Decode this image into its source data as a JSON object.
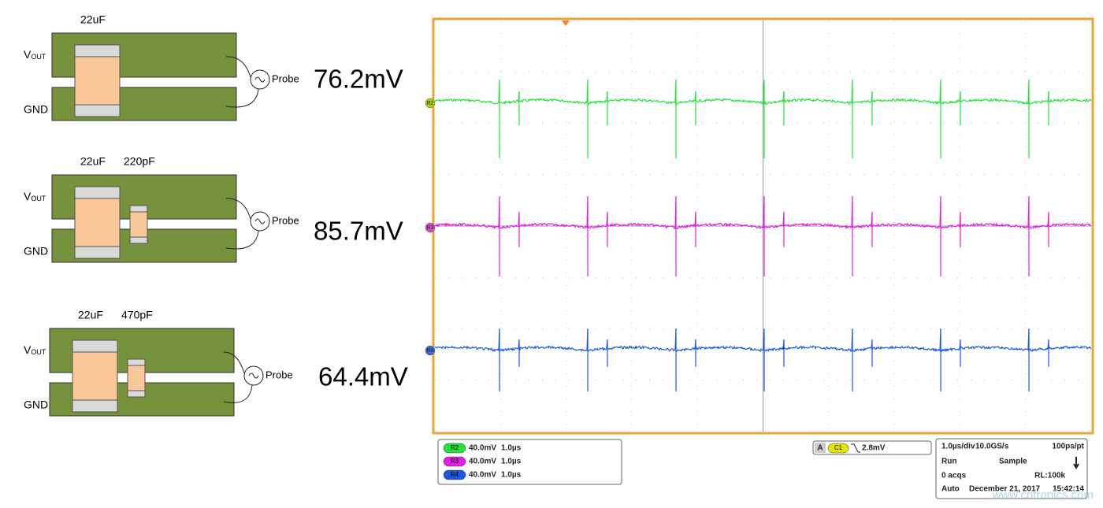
{
  "panels": [
    {
      "capacitors": [
        "22uF"
      ],
      "vout": "V",
      "vout_sub": "OUT",
      "gnd": "GND",
      "probe": "Probe",
      "ripple": "76.2mV"
    },
    {
      "capacitors": [
        "22uF",
        "220pF"
      ],
      "vout": "V",
      "vout_sub": "OUT",
      "gnd": "GND",
      "probe": "Probe",
      "ripple": "85.7mV"
    },
    {
      "capacitors": [
        "22uF",
        "470pF"
      ],
      "vout": "V",
      "vout_sub": "OUT",
      "gnd": "GND",
      "probe": "Probe",
      "ripple": "64.4mV"
    }
  ],
  "scope": {
    "channel_markers": [
      "R2",
      "R3",
      "R4"
    ],
    "legend": [
      {
        "channel": "R2",
        "scale": "40.0mV",
        "time": "1.0µs"
      },
      {
        "channel": "R3",
        "scale": "40.0mV",
        "time": "1.0µs"
      },
      {
        "channel": "R4",
        "scale": "40.0mV",
        "time": "1.0µs"
      }
    ],
    "trigger": {
      "mode": "A",
      "channel": "C1",
      "level": "2.8mV"
    },
    "acquisition": {
      "timebase": "1.0µs/div",
      "sample_rate": "10.0GS/s",
      "resolution": "100ps/pt",
      "state": "Run",
      "sampling": "Sample",
      "acqs": "0 acqs",
      "record_length": "RL:100k",
      "trigger_mode": "Auto",
      "date": "December 21, 2017",
      "time": "15:42:14"
    },
    "watermark": "www.cntronics.com"
  }
}
